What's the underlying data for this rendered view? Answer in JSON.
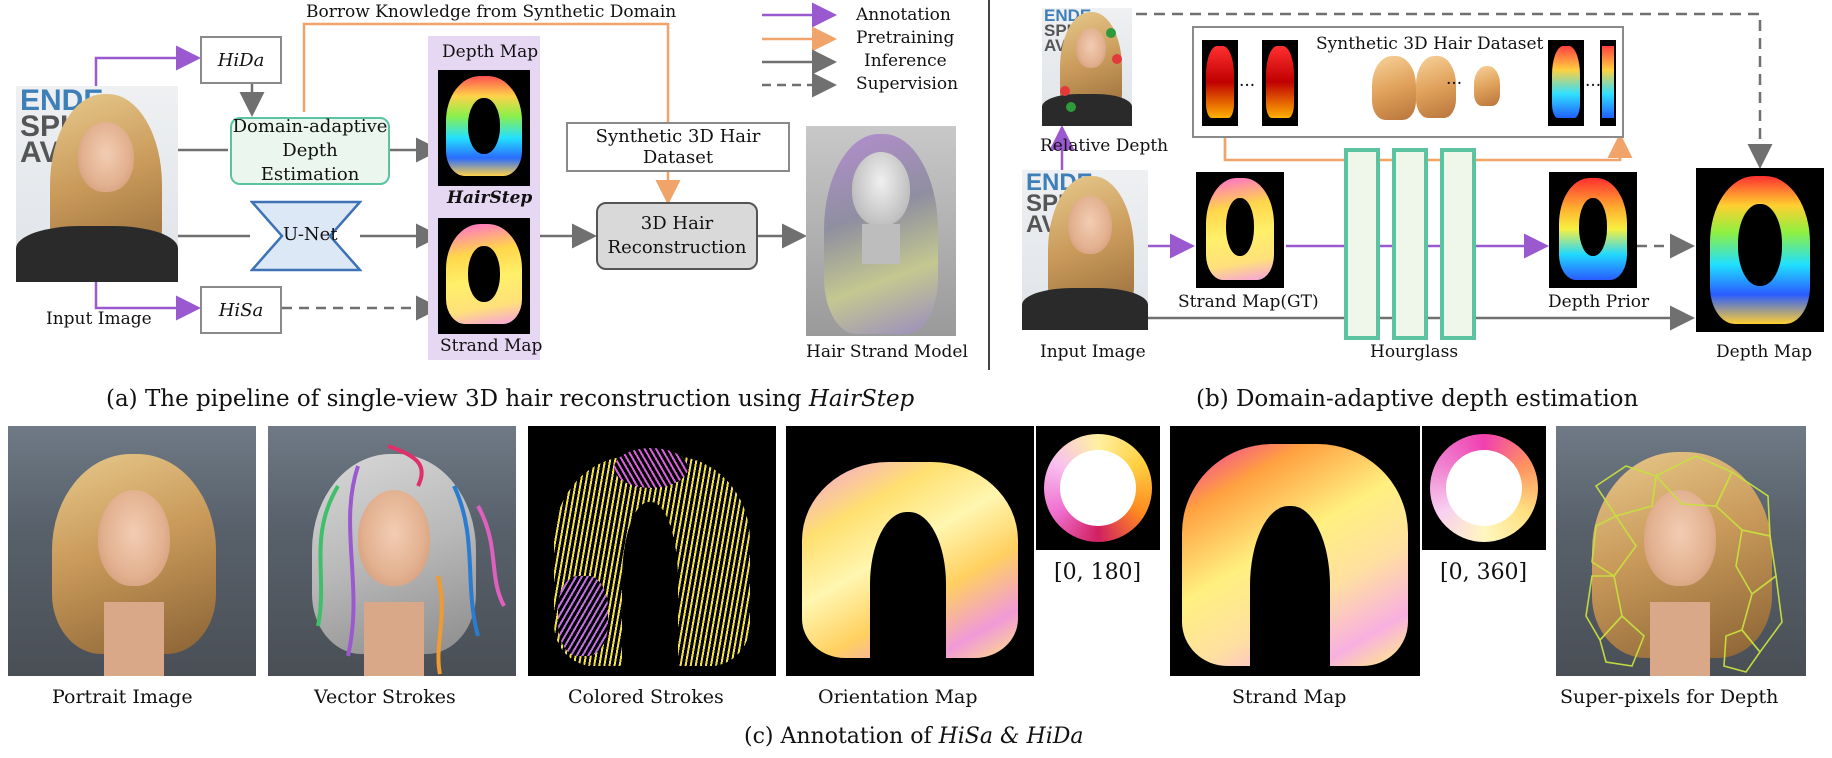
{
  "panel_a": {
    "top_label": "Borrow Knowledge from Synthetic Domain",
    "hida": "HiDa",
    "hisa": "HiSa",
    "depth_est_line1": "Domain-adaptive",
    "depth_est_line2": "Depth Estimation",
    "unet": "U-Net",
    "depth_map": "Depth Map",
    "hairstep": "HairStep",
    "strand_map": "Strand Map",
    "synthetic_dataset": "Synthetic 3D Hair Dataset",
    "recon_line1": "3D Hair",
    "recon_line2": "Reconstruction",
    "input_image": "Input Image",
    "hair_strand_model": "Hair Strand Model",
    "caption_prefix": "(a) The pipeline of single-view 3D hair reconstruction using ",
    "caption_italic": "HairStep"
  },
  "legend": {
    "items": [
      {
        "label": "Annotation",
        "color": "#9b59d0",
        "style": "solid"
      },
      {
        "label": "Pretraining",
        "color": "#f0a46a",
        "style": "solid"
      },
      {
        "label": "Inference",
        "color": "#707070",
        "style": "solid"
      },
      {
        "label": "Supervision",
        "color": "#707070",
        "style": "dashed"
      }
    ]
  },
  "panel_b": {
    "relative_depth": "Relative Depth",
    "synthetic_dataset": "Synthetic 3D  Hair Dataset",
    "dots": "···",
    "strand_map_gt": "Strand Map(GT)",
    "hourglass": "Hourglass",
    "depth_prior": "Depth Prior",
    "input_image": "Input Image",
    "depth_map": "Depth Map",
    "caption": "(b) Domain-adaptive depth estimation"
  },
  "panel_c": {
    "labels": [
      "Portrait Image",
      "Vector Strokes",
      "Colored Strokes",
      "Orientation Map",
      "Strand Map",
      "Super-pixels for Depth"
    ],
    "range_180": "[0, 180]",
    "range_360": "[0, 360]",
    "caption_prefix": "(c) Annotation of ",
    "caption_italic": "HiSa & HiDa"
  },
  "colors": {
    "annotation": "#9b59d0",
    "pretraining": "#f0a46a",
    "inference": "#707070",
    "hourglass": "#5cc3a0",
    "depth_est_fill": "#eaf6ee",
    "hairstep_panel": "#e6d8f3",
    "unet_fill": "#dde8f7",
    "unet_stroke": "#3d72b4"
  }
}
